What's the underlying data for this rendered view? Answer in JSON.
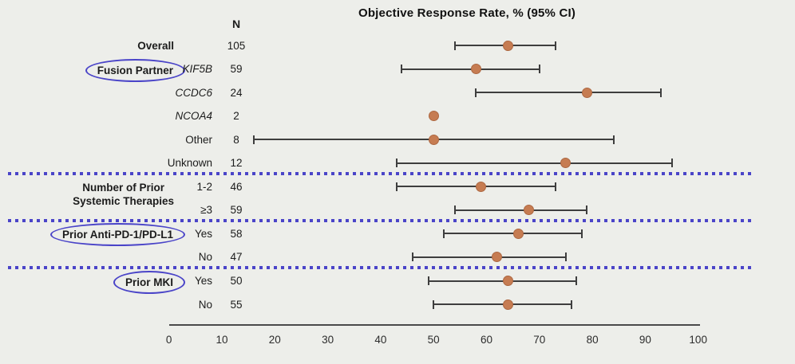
{
  "figure": {
    "title": "Objective Response Rate, % (95% CI)",
    "n_column_header": "N",
    "colors": {
      "background": "#edeeea",
      "marker": "#c67c52",
      "ci_line": "#3e3e3e",
      "accent_blue": "#4a44c8",
      "text": "#1c1c1c"
    }
  },
  "chart_data": {
    "type": "scatter",
    "subtype": "forest-plot",
    "title": "Objective Response Rate, % (95% CI)",
    "xlabel": "",
    "xlim": [
      0,
      100
    ],
    "x_ticks": [
      0,
      10,
      20,
      30,
      40,
      50,
      60,
      70,
      80,
      90,
      100
    ],
    "grid": false,
    "rows": [
      {
        "group": "Overall",
        "circled": false,
        "label": "",
        "n": 105,
        "estimate": 64,
        "ci_low": 54,
        "ci_high": 73
      },
      {
        "group": "Fusion Partner",
        "circled": true,
        "label": "KIF5B",
        "label_italic": true,
        "n": 59,
        "estimate": 58,
        "ci_low": 44,
        "ci_high": 70
      },
      {
        "label": "CCDC6",
        "label_italic": true,
        "n": 24,
        "estimate": 79,
        "ci_low": 58,
        "ci_high": 93
      },
      {
        "label": "NCOA4",
        "label_italic": true,
        "n": 2,
        "estimate": 50,
        "ci_low": null,
        "ci_high": null
      },
      {
        "label": "Other",
        "n": 8,
        "estimate": 50,
        "ci_low": 16,
        "ci_high": 84
      },
      {
        "label": "Unknown",
        "n": 12,
        "estimate": 75,
        "ci_low": 43,
        "ci_high": 95,
        "separator_after": true
      },
      {
        "group": "Number of Prior\nSystemic Therapies",
        "group_two_rows": true,
        "circled": false,
        "label": "1-2",
        "n": 46,
        "estimate": 59,
        "ci_low": 43,
        "ci_high": 73
      },
      {
        "label": "≥3",
        "n": 59,
        "estimate": 68,
        "ci_low": 54,
        "ci_high": 79,
        "separator_after": true
      },
      {
        "group": "Prior Anti-PD-1/PD-L1",
        "circled": true,
        "label": "Yes",
        "n": 58,
        "estimate": 66,
        "ci_low": 52,
        "ci_high": 78
      },
      {
        "label": "No",
        "n": 47,
        "estimate": 62,
        "ci_low": 46,
        "ci_high": 75,
        "separator_after": true
      },
      {
        "group": "Prior MKI",
        "circled": true,
        "label": "Yes",
        "n": 50,
        "estimate": 64,
        "ci_low": 49,
        "ci_high": 77
      },
      {
        "label": "No",
        "n": 55,
        "estimate": 64,
        "ci_low": 50,
        "ci_high": 76
      }
    ]
  }
}
